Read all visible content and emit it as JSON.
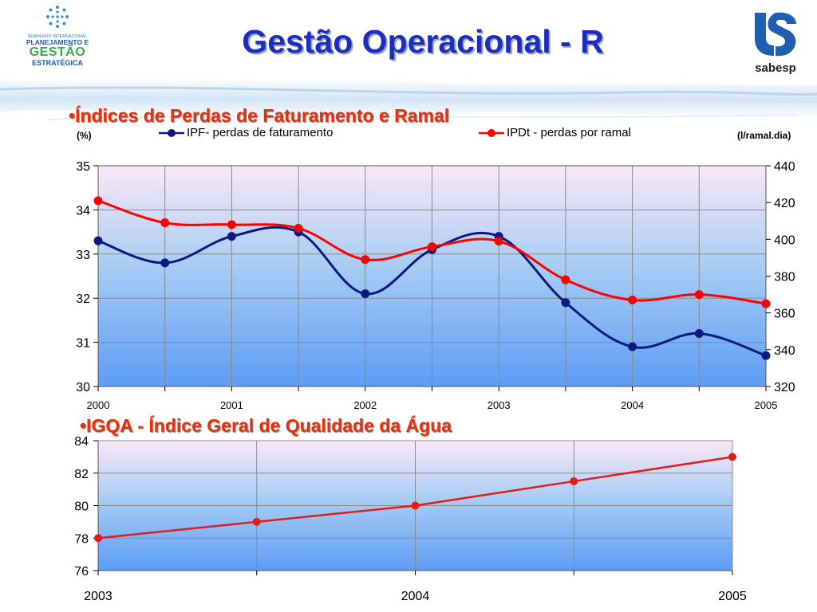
{
  "header": {
    "title": "Gestão Operacional - R",
    "left_logo": {
      "line1": "SEMINÁRIO INTERNACIONAL",
      "line2": "PLANEJAMENTO E",
      "line3": "GESTÃO",
      "line4": "ESTRATÉGICA"
    },
    "right_logo": {
      "brand": "sabesp"
    }
  },
  "colors": {
    "title": "#1a2fc0",
    "heading": "#e8300c",
    "ipf_series": "#0a1a80",
    "ipdt_series": "#ff0000",
    "igqa_series": "#e41b1b"
  },
  "chart_data": [
    {
      "type": "line",
      "heading": "•Índices de Perdas de Faturamento e Ramal",
      "y_left_unit": "(%)",
      "y_right_unit": "(l/ramal.dia)",
      "x_ticks": [
        "2000",
        "2001",
        "2002",
        "2003",
        "2004",
        "2005"
      ],
      "x": [
        2000.0,
        2000.5,
        2001.0,
        2001.5,
        2002.0,
        2002.5,
        2003.0,
        2003.5,
        2004.0,
        2004.5,
        2005.0
      ],
      "ylim_left": [
        30,
        35
      ],
      "y_ticks_left": [
        30,
        31,
        32,
        33,
        34,
        35
      ],
      "ylim_right": [
        320,
        440
      ],
      "y_ticks_right": [
        320,
        340,
        360,
        380,
        400,
        420,
        440
      ],
      "grid": true,
      "legend": "top",
      "series": [
        {
          "name": "IPF- perdas de faturamento",
          "axis": "left",
          "marker": "circle",
          "values": [
            33.3,
            32.8,
            33.4,
            33.5,
            32.1,
            33.1,
            33.4,
            31.9,
            30.9,
            31.2,
            30.7
          ]
        },
        {
          "name": "IPDt - perdas por ramal",
          "axis": "right",
          "marker": "circle",
          "values": [
            421,
            409,
            408,
            406,
            389,
            396,
            399,
            378,
            367,
            370,
            365
          ]
        }
      ]
    },
    {
      "type": "line",
      "heading": "•IGQA - Índice Geral de Qualidade da Água",
      "x_ticks": [
        "2003",
        "2004",
        "2005"
      ],
      "x": [
        2003.0,
        2003.5,
        2004.0,
        2004.5,
        2005.0
      ],
      "ylim": [
        76,
        84
      ],
      "y_ticks": [
        76,
        78,
        80,
        82,
        84
      ],
      "grid": true,
      "series": [
        {
          "marker": "circle",
          "values": [
            78,
            79,
            80,
            81.5,
            83
          ]
        }
      ]
    }
  ]
}
